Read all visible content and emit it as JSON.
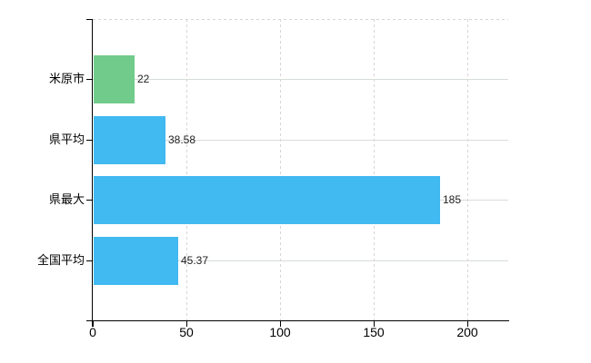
{
  "chart_data": {
    "type": "bar",
    "orientation": "horizontal",
    "title": "",
    "xlabel": "",
    "ylabel": "",
    "categories": [
      "米原市",
      "県平均",
      "県最大",
      "全国平均"
    ],
    "values": [
      22,
      38.58,
      185,
      45.37
    ],
    "value_labels": [
      "22",
      "38.58",
      "185",
      "45.37"
    ],
    "bar_colors": [
      "#71cb8b",
      "#41b9f1",
      "#41b9f1",
      "#41b9f1"
    ],
    "x_ticks": [
      0,
      50,
      100,
      150,
      200
    ],
    "x_tick_labels": [
      "0",
      "50",
      "100",
      "150",
      "200"
    ],
    "xlim": [
      0,
      222
    ],
    "grid": {
      "vertical": "dashed",
      "horizontal": "solid",
      "top_border": "dashed"
    },
    "legend": "none"
  },
  "colors": {
    "background": "#ffffff",
    "bar_highlight": "#71cb8b",
    "bar_default": "#41b9f1",
    "axis_line": "#000000",
    "grid_vertical": "#d7d3db",
    "grid_horizontal": "#d7ddd7",
    "label_text": "#000000",
    "value_text": "#222222"
  }
}
